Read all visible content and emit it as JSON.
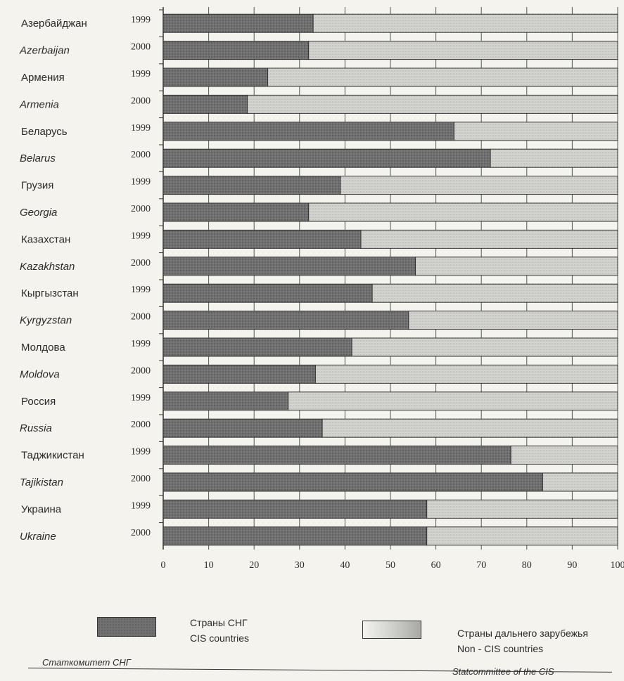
{
  "chart_data": {
    "type": "bar",
    "orientation": "horizontal",
    "stacked": true,
    "percent": true,
    "rows": [
      {
        "country": "Азербайджан",
        "year": "1999",
        "cis": 33,
        "non_cis": 67
      },
      {
        "country": "Azerbaijan",
        "year": "2000",
        "cis": 32,
        "non_cis": 68
      },
      {
        "country": "Армения",
        "year": "1999",
        "cis": 23,
        "non_cis": 77
      },
      {
        "country": "Armenia",
        "year": "2000",
        "cis": 18.5,
        "non_cis": 81.5
      },
      {
        "country": "Беларусь",
        "year": "1999",
        "cis": 64,
        "non_cis": 36
      },
      {
        "country": "Belarus",
        "year": "2000",
        "cis": 72,
        "non_cis": 28
      },
      {
        "country": "Грузия",
        "year": "1999",
        "cis": 39,
        "non_cis": 61
      },
      {
        "country": "Georgia",
        "year": "2000",
        "cis": 32,
        "non_cis": 68
      },
      {
        "country": "Казахстан",
        "year": "1999",
        "cis": 43.5,
        "non_cis": 56.5
      },
      {
        "country": "Kazakhstan",
        "year": "2000",
        "cis": 55.5,
        "non_cis": 44.5
      },
      {
        "country": "Кыргызстан",
        "year": "1999",
        "cis": 46,
        "non_cis": 54
      },
      {
        "country": "Kyrgyzstan",
        "year": "2000",
        "cis": 54,
        "non_cis": 46
      },
      {
        "country": "Молдова",
        "year": "1999",
        "cis": 41.5,
        "non_cis": 58.5
      },
      {
        "country": "Moldova",
        "year": "2000",
        "cis": 33.5,
        "non_cis": 66.5
      },
      {
        "country": "Россия",
        "year": "1999",
        "cis": 27.5,
        "non_cis": 72.5
      },
      {
        "country": "Russia",
        "year": "2000",
        "cis": 35,
        "non_cis": 65
      },
      {
        "country": "Таджикистан",
        "year": "1999",
        "cis": 76.5,
        "non_cis": 23.5
      },
      {
        "country": "Tajikistan",
        "year": "2000",
        "cis": 83.5,
        "non_cis": 16.5
      },
      {
        "country": "Украина",
        "year": "1999",
        "cis": 58,
        "non_cis": 42
      },
      {
        "country": "Ukraine",
        "year": "2000",
        "cis": 58,
        "non_cis": 42
      }
    ],
    "xlim": [
      0,
      100
    ],
    "xticks": [
      "0",
      "10",
      "20",
      "30",
      "40",
      "50",
      "60",
      "70",
      "80",
      "90",
      "100"
    ],
    "grid": true,
    "series": [
      {
        "name_ru": "Страны СНГ",
        "name_en": "CIS countries",
        "color": "#6e6e6e"
      },
      {
        "name_ru": "Страны дальнего зарубежья",
        "name_en": "Non - CIS countries",
        "color": "#c8c8c4"
      }
    ],
    "legend_position": "bottom"
  },
  "source": {
    "left": "Статкомитет СНГ",
    "right": "Statcommittee of the CIS"
  }
}
